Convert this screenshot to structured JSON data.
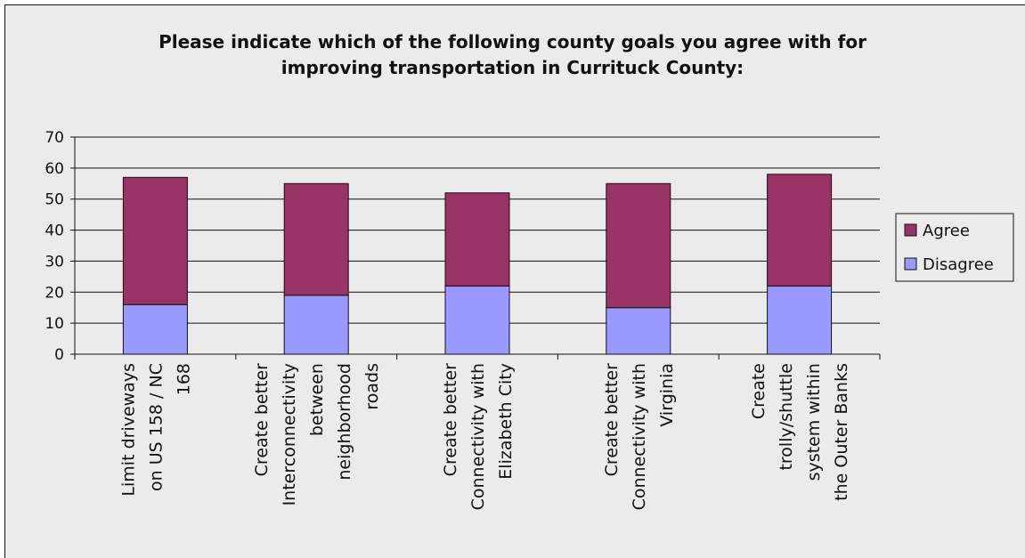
{
  "chart_data": {
    "type": "bar",
    "stacked": true,
    "title_lines": [
      "Please indicate which of the following county goals you agree with for",
      "improving transportation in Currituck County:"
    ],
    "categories": [
      [
        "Limit driveways",
        "on US 158 / NC",
        "168"
      ],
      [
        "Create better",
        "Interconnectivity",
        "between",
        "neighborhood",
        "roads"
      ],
      [
        "Create better",
        "Connectivity with",
        "Elizabeth City"
      ],
      [
        "Create better",
        "Connectivity with",
        "Virginia"
      ],
      [
        "Create",
        "trolly/shuttle",
        "system within",
        "the Outer Banks"
      ]
    ],
    "series": [
      {
        "name": "Disagree",
        "color": "#9999ff",
        "values": [
          16,
          19,
          22,
          15,
          22
        ]
      },
      {
        "name": "Agree",
        "color": "#993366",
        "values": [
          41,
          36,
          30,
          40,
          36
        ]
      }
    ],
    "legend_order": [
      "Agree",
      "Disagree"
    ],
    "ylim": [
      0,
      70
    ],
    "yticks": [
      "0",
      "10",
      "20",
      "30",
      "40",
      "50",
      "60",
      "70"
    ],
    "grid": true,
    "legend_position": "right"
  }
}
